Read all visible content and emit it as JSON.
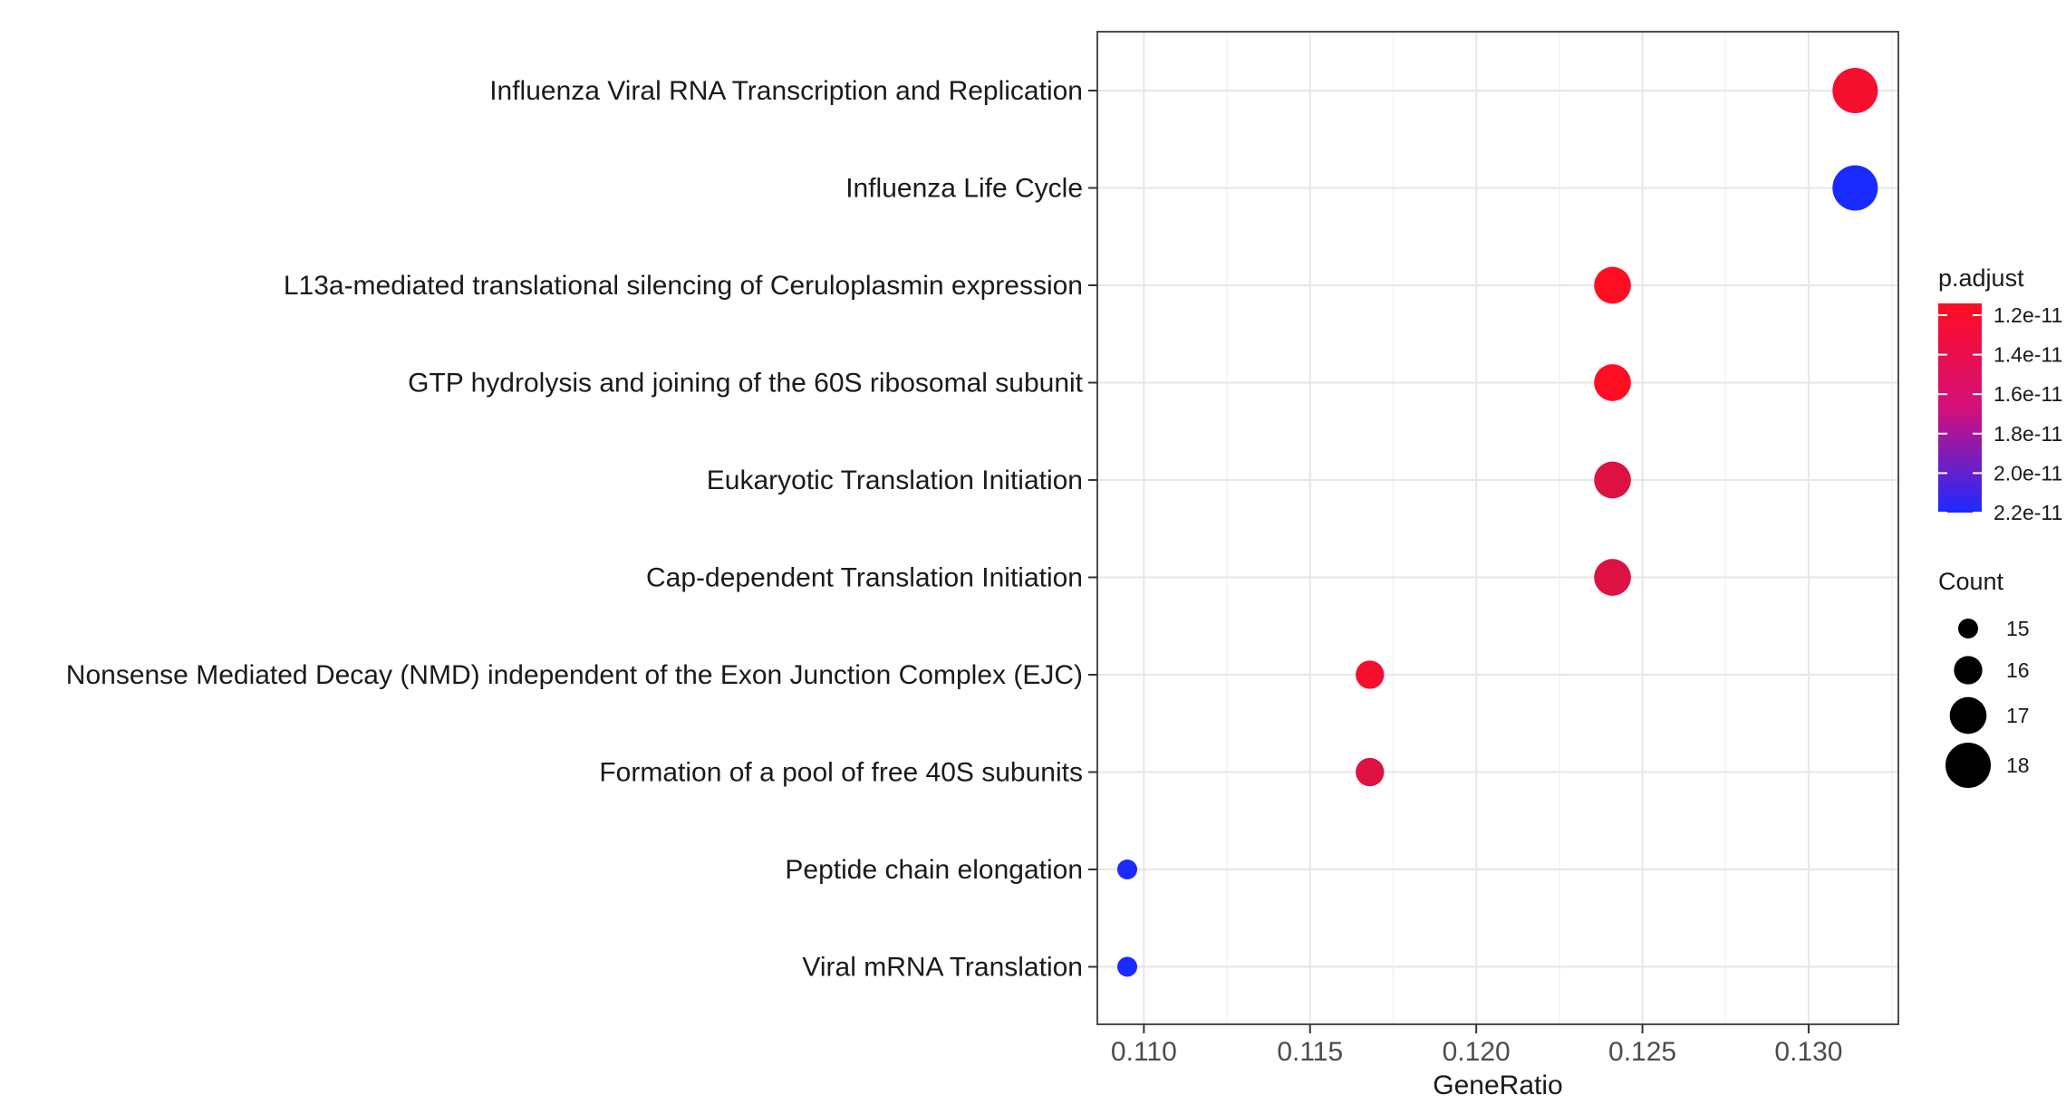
{
  "chart_data": {
    "type": "scatter",
    "title": "",
    "xlabel": "GeneRatio",
    "ylabel": "",
    "xlim": [
      0.1086,
      0.1327
    ],
    "x_ticks": [
      "0.110",
      "0.115",
      "0.120",
      "0.125",
      "0.130"
    ],
    "x_tick_values": [
      0.11,
      0.115,
      0.12,
      0.125,
      0.13
    ],
    "grid": true,
    "categories": [
      "Influenza Viral RNA Transcription and Replication",
      "Influenza Life Cycle",
      "L13a-mediated translational silencing of Ceruloplasmin expression",
      "GTP hydrolysis and joining of the 60S ribosomal subunit",
      "Eukaryotic Translation Initiation",
      "Cap-dependent Translation Initiation",
      "Nonsense Mediated Decay (NMD) independent of the Exon Junction Complex (EJC)",
      "Formation of a pool of free 40S subunits",
      "Peptide chain elongation",
      "Viral mRNA Translation"
    ],
    "points": [
      {
        "term": "Influenza Viral RNA Transcription and Replication",
        "gene_ratio": 0.1314,
        "count": 18,
        "p_adjust": 1.25e-11
      },
      {
        "term": "Influenza Life Cycle",
        "gene_ratio": 0.1314,
        "count": 18,
        "p_adjust": 2.2e-11
      },
      {
        "term": "L13a-mediated translational silencing of Ceruloplasmin expression",
        "gene_ratio": 0.1241,
        "count": 17,
        "p_adjust": 1.2e-11
      },
      {
        "term": "GTP hydrolysis and joining of the 60S ribosomal subunit",
        "gene_ratio": 0.1241,
        "count": 17,
        "p_adjust": 1.2e-11
      },
      {
        "term": "Eukaryotic Translation Initiation",
        "gene_ratio": 0.1241,
        "count": 17,
        "p_adjust": 1.35e-11
      },
      {
        "term": "Cap-dependent Translation Initiation",
        "gene_ratio": 0.1241,
        "count": 17,
        "p_adjust": 1.35e-11
      },
      {
        "term": "Nonsense Mediated Decay (NMD) independent of the Exon Junction Complex (EJC)",
        "gene_ratio": 0.1168,
        "count": 16,
        "p_adjust": 1.25e-11
      },
      {
        "term": "Formation of a pool of free 40S subunits",
        "gene_ratio": 0.1168,
        "count": 16,
        "p_adjust": 1.35e-11
      },
      {
        "term": "Peptide chain elongation",
        "gene_ratio": 0.1095,
        "count": 15,
        "p_adjust": 2.2e-11
      },
      {
        "term": "Viral mRNA Translation",
        "gene_ratio": 0.1095,
        "count": 15,
        "p_adjust": 2.2e-11
      }
    ],
    "color_legend": {
      "title": "p.adjust",
      "labels": [
        "1.2e-11",
        "1.4e-11",
        "1.6e-11",
        "1.8e-11",
        "2.0e-11",
        "2.2e-11"
      ],
      "values": [
        1.2e-11,
        1.4e-11,
        1.6e-11,
        1.8e-11,
        2e-11,
        2.2e-11
      ],
      "low_color": "#ff0d22",
      "high_color": "#1a2bff"
    },
    "size_legend": {
      "title": "Count",
      "labels": [
        "15",
        "16",
        "17",
        "18"
      ],
      "values": [
        15,
        16,
        17,
        18
      ]
    },
    "legend_position": "right"
  }
}
